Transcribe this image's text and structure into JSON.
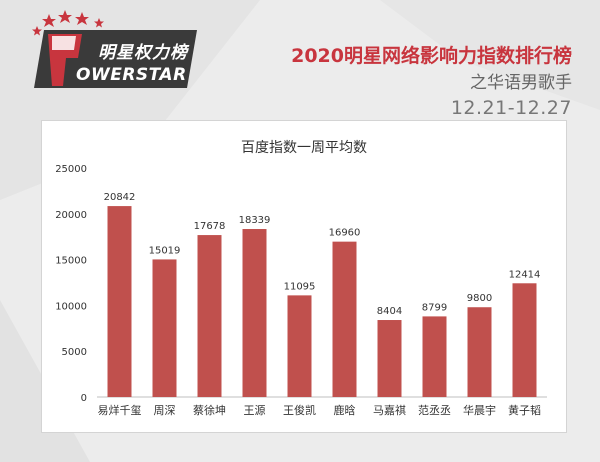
{
  "logo": {
    "cn_text": "明星权力榜",
    "en_text": "OWERSTAR"
  },
  "header": {
    "title": "2020明星网络影响力指数排行榜",
    "subtitle": "之华语男歌手",
    "date_range": "12.21-12.27"
  },
  "colors": {
    "bar": "#c0504d",
    "brand_red": "#c8353e",
    "logo_dark": "#3a3a3a"
  },
  "chart_data": {
    "type": "bar",
    "title": "百度指数一周平均数",
    "categories": [
      "易烊千玺",
      "周深",
      "蔡徐坤",
      "王源",
      "王俊凯",
      "鹿晗",
      "马嘉祺",
      "范丞丞",
      "华晨宇",
      "黄子韬"
    ],
    "values": [
      20842,
      15019,
      17678,
      18339,
      11095,
      16960,
      8404,
      8799,
      9800,
      12414
    ],
    "ylim": [
      0,
      25000
    ],
    "yticks": [
      0,
      5000,
      10000,
      15000,
      20000,
      25000
    ],
    "grid": false,
    "legend": "none"
  }
}
